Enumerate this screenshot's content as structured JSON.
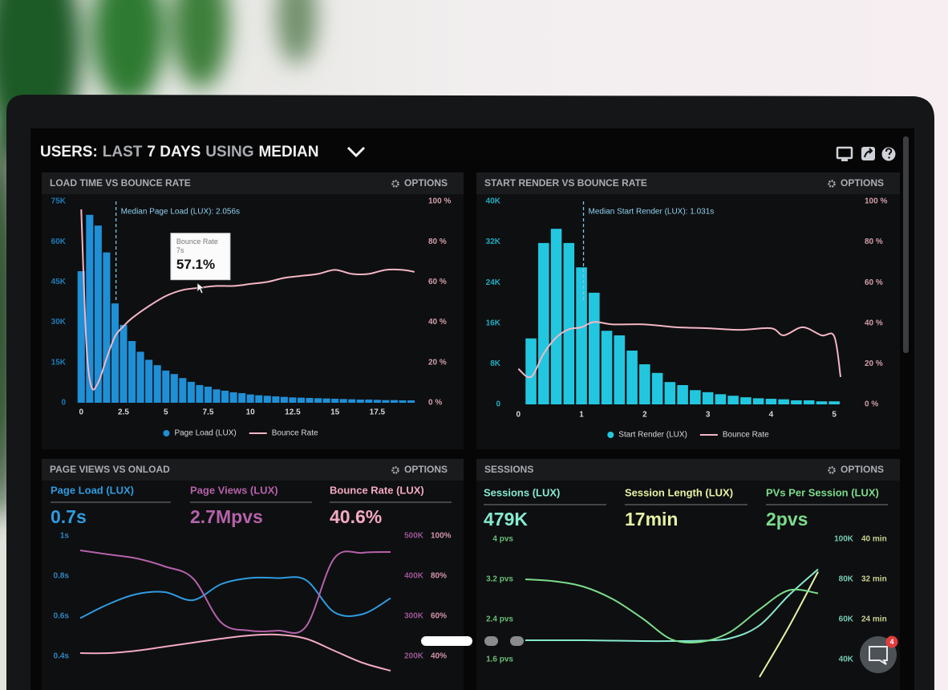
{
  "header": {
    "title_parts": [
      "USERS:",
      "LAST",
      "7 DAYS",
      "USING",
      "MEDIAN"
    ]
  },
  "panel_action": "OPTIONS",
  "chat_badge": 4,
  "chart_data": [
    {
      "type": "combo",
      "title": "LOAD TIME VS BOUNCE RATE",
      "xlim": [
        -0.25,
        19.9
      ],
      "xticks": [
        0,
        2.5,
        5,
        7.5,
        10,
        12.5,
        15,
        17.5
      ],
      "ylim": [
        0,
        75000
      ],
      "yticks": [
        0,
        {
          "value": 15000,
          "label": "15K"
        },
        {
          "value": 30000,
          "label": "30K"
        },
        {
          "value": 45000,
          "label": "45K"
        },
        {
          "value": 60000,
          "label": "60K"
        },
        {
          "value": 75000,
          "label": "75K"
        }
      ],
      "y2lim": [
        0,
        100
      ],
      "y2ticks": [
        {
          "value": 0,
          "label": "0 %"
        },
        {
          "value": 20,
          "label": "20 %"
        },
        {
          "value": 40,
          "label": "40 %"
        },
        {
          "value": 60,
          "label": "60 %"
        },
        {
          "value": 80,
          "label": "80 %"
        },
        {
          "value": 100,
          "label": "100 %"
        }
      ],
      "median": {
        "value": 2.056,
        "label": "Median Page Load (LUX): 2.056s"
      },
      "tooltip": {
        "title": "Bounce Rate",
        "x": 7,
        "x_label": "7s",
        "value": 57.1,
        "value_label": "57.1%"
      },
      "series": [
        {
          "name": "Page Load (LUX)",
          "type": "bar",
          "color": "#1f8fd6",
          "x": [
            0,
            0.5,
            1,
            1.5,
            2,
            2.5,
            3,
            3.5,
            4,
            4.5,
            5,
            5.5,
            6,
            6.5,
            7,
            7.5,
            8,
            8.5,
            9,
            9.5,
            10,
            10.5,
            11,
            11.5,
            12,
            12.5,
            13,
            13.5,
            14,
            14.5,
            15,
            15.5,
            16,
            16.5,
            17,
            17.5,
            18,
            18.5,
            19,
            19.5
          ],
          "values": [
            49000,
            70000,
            66000,
            56000,
            37000,
            29000,
            23000,
            19000,
            16000,
            14000,
            12000,
            10700,
            9200,
            7800,
            6600,
            6000,
            5000,
            4500,
            3900,
            3600,
            3100,
            2800,
            2600,
            2400,
            2200,
            2000,
            1900,
            1800,
            1700,
            1600,
            1500,
            1400,
            1300,
            1200,
            1200,
            1100,
            1000,
            1000,
            900,
            900
          ]
        },
        {
          "name": "Bounce Rate",
          "type": "line",
          "axis": "y2",
          "color": "#f4b6c6",
          "x": [
            0,
            0.3,
            0.6,
            1,
            1.5,
            2,
            2.5,
            3,
            4,
            5,
            6,
            7,
            8,
            9,
            10,
            11,
            12,
            13,
            14,
            15,
            16,
            17,
            18,
            19,
            19.7
          ],
          "values": [
            96,
            30,
            8,
            10,
            22,
            33,
            38,
            42,
            48,
            53,
            56,
            57.1,
            58,
            58,
            59,
            60,
            62,
            63,
            64,
            66,
            64,
            64,
            66,
            66,
            65
          ]
        }
      ]
    },
    {
      "type": "combo",
      "title": "START RENDER VS BOUNCE RATE",
      "xlim": [
        -0.08,
        5.15
      ],
      "xticks": [
        0,
        1,
        2,
        3,
        4,
        5
      ],
      "ylim": [
        0,
        40000
      ],
      "yticks": [
        0,
        {
          "value": 8000,
          "label": "8K"
        },
        {
          "value": 16000,
          "label": "16K"
        },
        {
          "value": 24000,
          "label": "24K"
        },
        {
          "value": 32000,
          "label": "32K"
        },
        {
          "value": 40000,
          "label": "40K"
        }
      ],
      "y2lim": [
        0,
        100
      ],
      "y2ticks": [
        {
          "value": 0,
          "label": "0 %"
        },
        {
          "value": 20,
          "label": "20 %"
        },
        {
          "value": 40,
          "label": "40 %"
        },
        {
          "value": 60,
          "label": "60 %"
        },
        {
          "value": 80,
          "label": "80 %"
        },
        {
          "value": 100,
          "label": "100 %"
        }
      ],
      "median": {
        "value": 1.031,
        "label": "Median Start Render (LUX): 1.031s"
      },
      "series": [
        {
          "name": "Start Render (LUX)",
          "type": "bar",
          "color": "#22c7df",
          "x": [
            0.2,
            0.4,
            0.6,
            0.8,
            1,
            1.2,
            1.4,
            1.6,
            1.8,
            2,
            2.2,
            2.4,
            2.6,
            2.8,
            3,
            3.2,
            3.4,
            3.6,
            3.8,
            4,
            4.2,
            4.4,
            4.6,
            4.8,
            5
          ],
          "values": [
            13000,
            31800,
            34600,
            31800,
            27000,
            22000,
            14500,
            13600,
            10600,
            7900,
            6200,
            4400,
            3800,
            2800,
            2400,
            2000,
            1700,
            1400,
            1200,
            1100,
            1000,
            800,
            800,
            600,
            600
          ]
        },
        {
          "name": "Bounce Rate",
          "type": "line",
          "axis": "y2",
          "color": "#f4b6c6",
          "x": [
            0,
            0.2,
            0.4,
            0.6,
            0.8,
            1,
            1.2,
            1.5,
            2,
            2.5,
            3,
            3.5,
            4,
            4.2,
            4.5,
            4.8,
            5,
            5.1
          ],
          "values": [
            17.5,
            13.5,
            25,
            33,
            37,
            38,
            40.6,
            39.4,
            39.4,
            38,
            37.5,
            36.7,
            37.5,
            34,
            38,
            34,
            33.5,
            13.5
          ]
        }
      ]
    },
    {
      "type": "line",
      "title": "PAGE VIEWS VS ONLOAD",
      "ylim": [
        0.4,
        1
      ],
      "yticks": [
        {
          "value": 0.4,
          "label": "0.4s"
        },
        {
          "value": 0.6,
          "label": "0.6s"
        },
        {
          "value": 0.8,
          "label": "0.8s"
        },
        {
          "value": 1,
          "label": "1s"
        }
      ],
      "y2lim": [
        200000,
        500000
      ],
      "y2ticks": [
        {
          "value": 200000,
          "label": "200K"
        },
        {
          "value": 300000,
          "label": "300K"
        },
        {
          "value": 400000,
          "label": "400K"
        },
        {
          "value": 500000,
          "label": "500K"
        }
      ],
      "y3lim": [
        40,
        100
      ],
      "y3ticks": [
        {
          "value": 40,
          "label": "40%"
        },
        {
          "value": 60,
          "label": "60%"
        },
        {
          "value": 80,
          "label": "80%"
        },
        {
          "value": 100,
          "label": "100%"
        }
      ],
      "series": [
        {
          "name": "Page Load (LUX)",
          "summary": "0.7s",
          "color": "#2f9be0",
          "values": [
            0.59,
            0.66,
            0.71,
            0.72,
            0.68,
            0.76,
            0.79,
            0.79,
            0.78,
            0.62,
            0.61,
            0.69
          ]
        },
        {
          "name": "Page Views (LUX)",
          "summary": "2.7Mpvs",
          "axis": "y2",
          "color": "#b462aa",
          "values": [
            464000,
            454000,
            444000,
            424000,
            394000,
            284000,
            264000,
            264000,
            274000,
            444000,
            458000,
            460000
          ]
        },
        {
          "name": "Bounce Rate (LUX)",
          "summary": "40.6%",
          "axis": "y3",
          "color": "#f3a9c2",
          "values": [
            41.6,
            41.6,
            42.8,
            44.8,
            46.8,
            48.8,
            50.4,
            50.8,
            48.8,
            42.8,
            36.8,
            32.8
          ]
        }
      ]
    },
    {
      "type": "line",
      "title": "SESSIONS",
      "ylim": [
        1.6,
        4
      ],
      "yticks": [
        {
          "value": 1.6,
          "label": "1.6 pvs"
        },
        {
          "value": 2.4,
          "label": "2.4 pvs"
        },
        {
          "value": 3.2,
          "label": "3.2 pvs"
        },
        {
          "value": 4,
          "label": "4 pvs"
        }
      ],
      "y2lim": [
        40000,
        100000
      ],
      "y2ticks": [
        {
          "value": 40000,
          "label": "40K"
        },
        {
          "value": 60000,
          "label": "60K"
        },
        {
          "value": 80000,
          "label": "80K"
        },
        {
          "value": 100000,
          "label": "100K"
        }
      ],
      "y3lim": [
        16,
        40
      ],
      "y3ticks": [
        {
          "value": 24,
          "label": "24 min"
        },
        {
          "value": 32,
          "label": "32 min"
        },
        {
          "value": 40,
          "label": "40 min"
        }
      ],
      "series": [
        {
          "name": "Sessions (LUX)",
          "summary": "479K",
          "axis": "y2",
          "color": "#86ead0",
          "values": [
            49600,
            49600,
            49600,
            49400,
            49200,
            49200,
            49400,
            50600,
            57000,
            72000,
            85000
          ]
        },
        {
          "name": "Session Length (LUX)",
          "summary": "17min",
          "axis": "y3",
          "color": "#e6f2a4",
          "values": [
            null,
            null,
            null,
            null,
            null,
            null,
            null,
            null,
            12.5,
            22.5,
            33.5
          ]
        },
        {
          "name": "PVs Per Session (LUX)",
          "summary": "2pvs",
          "color": "#7cdc8c",
          "values": [
            3.2,
            3.16,
            3.05,
            2.8,
            2.42,
            2.0,
            1.95,
            2.15,
            2.6,
            2.98,
            2.92
          ]
        }
      ]
    }
  ]
}
